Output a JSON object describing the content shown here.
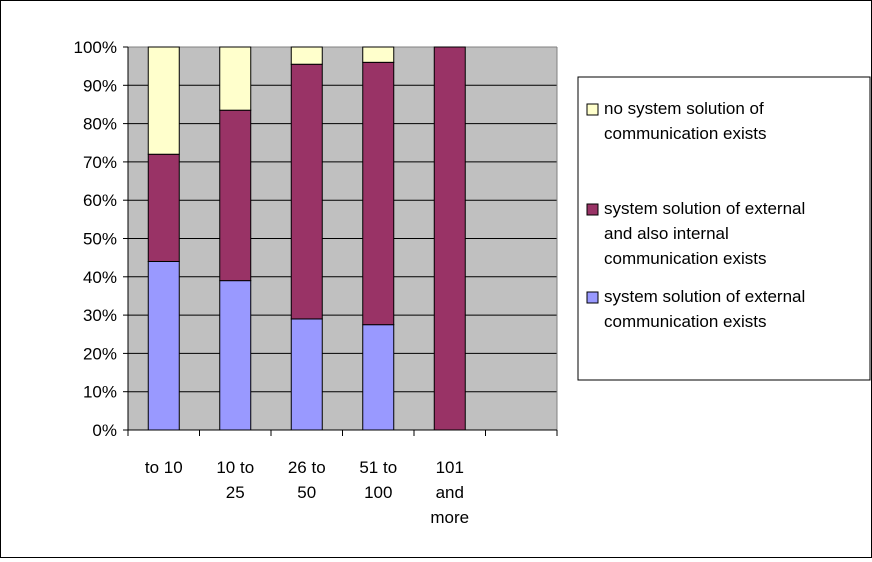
{
  "chart_data": {
    "type": "bar",
    "stacked": true,
    "percent": true,
    "categories": [
      [
        "to 10"
      ],
      [
        "10 to",
        "25"
      ],
      [
        "26 to",
        "50"
      ],
      [
        "51 to",
        "100"
      ],
      [
        "101",
        "and",
        "more"
      ],
      [
        ""
      ]
    ],
    "series": [
      {
        "name_lines": [
          "system solution of external",
          "communication exists"
        ],
        "color": "#9999ff",
        "values": [
          44,
          39,
          29,
          27.5,
          0,
          null
        ]
      },
      {
        "name_lines": [
          "system solution of external",
          "and also internal",
          "communication exists"
        ],
        "color": "#993366",
        "values": [
          28,
          44.5,
          66.5,
          68.5,
          100,
          null
        ]
      },
      {
        "name_lines": [
          "no system solution of",
          "communication exists"
        ],
        "color": "#ffffcc",
        "values": [
          28,
          16.5,
          4.5,
          4,
          0,
          null
        ]
      }
    ],
    "y_ticks": [
      "0%",
      "10%",
      "20%",
      "30%",
      "40%",
      "50%",
      "60%",
      "70%",
      "80%",
      "90%",
      "100%"
    ],
    "ylim": [
      0,
      100
    ],
    "grid": true,
    "plot_background": "#c0c0c0",
    "legend_position": "right",
    "legend_order": [
      2,
      1,
      0
    ]
  }
}
